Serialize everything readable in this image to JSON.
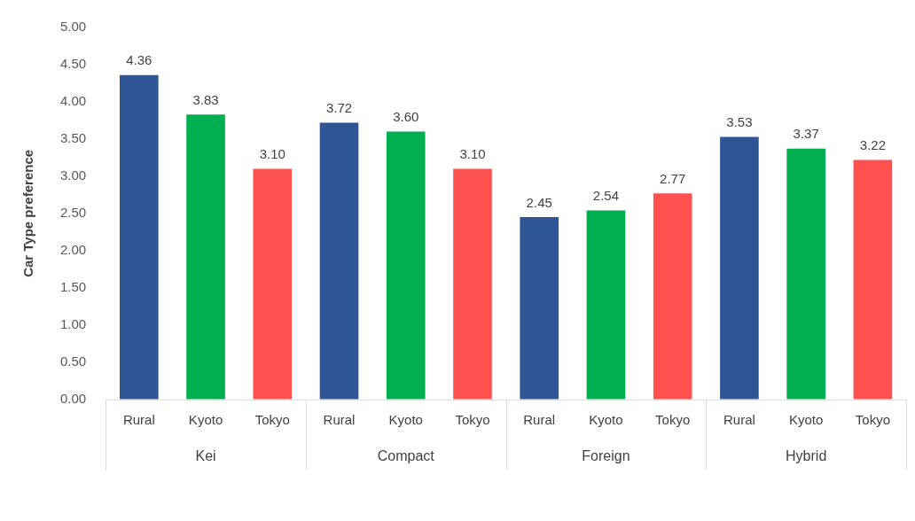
{
  "chart_data": {
    "type": "bar",
    "ylabel": "Car Type preference",
    "categories": [
      "Kei",
      "Compact",
      "Foreign",
      "Hybrid"
    ],
    "series": [
      {
        "name": "Rural",
        "color": "#2f5597",
        "values": [
          4.36,
          3.72,
          2.45,
          3.53
        ],
        "value_labels": [
          "4.36",
          "3.72",
          "2.45",
          "3.53"
        ]
      },
      {
        "name": "Kyoto",
        "color": "#00b050",
        "values": [
          3.83,
          3.6,
          2.54,
          3.37
        ],
        "value_labels": [
          "3.83",
          "3.60",
          "2.54",
          "3.37"
        ]
      },
      {
        "name": "Tokyo",
        "color": "#ff5050",
        "values": [
          3.1,
          3.1,
          2.77,
          3.22
        ],
        "value_labels": [
          "3.10",
          "3.10",
          "2.77",
          "3.22"
        ]
      }
    ],
    "ylim": [
      0,
      5
    ],
    "yticks": [
      {
        "value": 0,
        "label": "0.00"
      },
      {
        "value": 0.5,
        "label": "0.50"
      },
      {
        "value": 1,
        "label": "1.00"
      },
      {
        "value": 1.5,
        "label": "1.50"
      },
      {
        "value": 2,
        "label": "2.00"
      },
      {
        "value": 2.5,
        "label": "2.50"
      },
      {
        "value": 3,
        "label": "3.00"
      },
      {
        "value": 3.5,
        "label": "3.50"
      },
      {
        "value": 4,
        "label": "4.00"
      },
      {
        "value": 4.5,
        "label": "4.50"
      },
      {
        "value": 5,
        "label": "5.00"
      }
    ],
    "grid": false,
    "legend": false
  }
}
